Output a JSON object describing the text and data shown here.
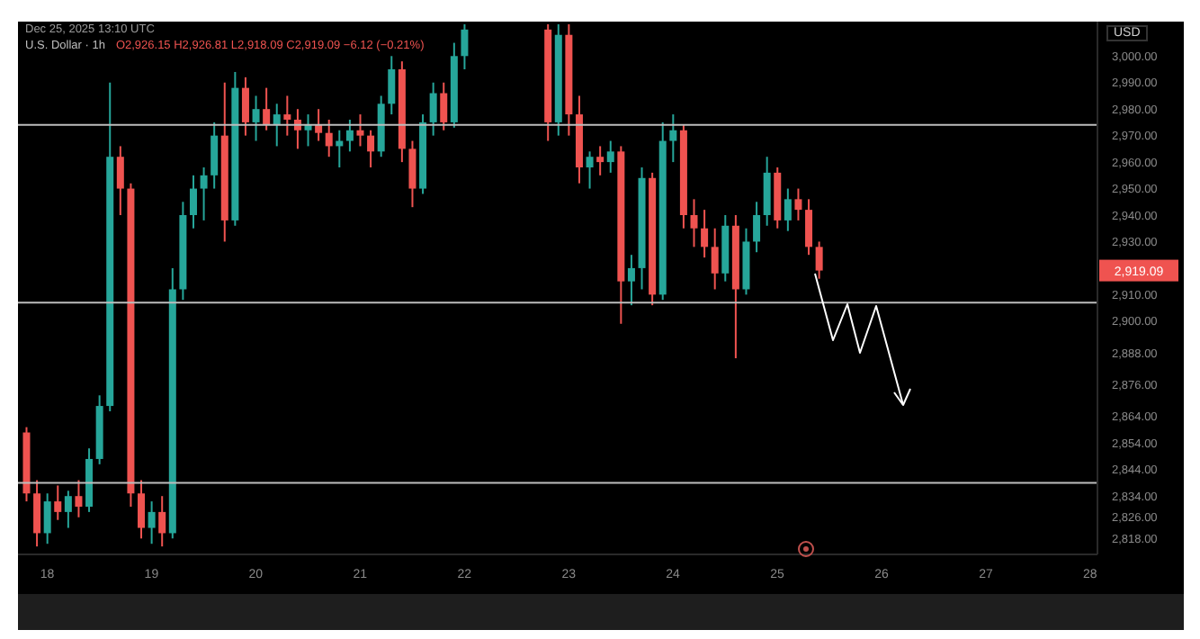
{
  "chart_data": {
    "type": "candlestick",
    "title": "U.S. Dollar · 1h",
    "ylabel": "USD",
    "annotations": [
      "Dec 25, 2025 13:10 UTC",
      "O2,926.15 H2,926.81 L2,918.09 C2,919.09 −6.12 (−0.21%)",
      "2,919.09"
    ],
    "x": [
      17.8,
      17.9,
      18.0,
      18.1,
      18.2,
      18.3,
      18.4,
      18.5,
      18.6,
      18.7,
      18.8,
      18.9,
      19.0,
      19.1,
      19.2,
      19.3,
      19.4,
      19.5,
      19.6,
      19.7,
      19.8,
      19.9,
      20.0,
      20.1,
      20.2,
      20.3,
      20.4,
      20.5,
      20.6,
      20.7,
      20.8,
      20.9,
      21.0,
      21.1,
      21.2,
      21.3,
      21.4,
      21.5,
      21.6,
      21.7,
      21.8,
      21.9,
      22.0,
      22.8,
      22.9,
      23.0,
      23.1,
      23.2,
      23.3,
      23.4,
      23.5,
      23.6,
      23.7,
      23.8,
      23.9,
      24.0,
      24.1,
      24.2,
      24.3,
      24.4,
      24.5,
      24.6,
      24.7,
      24.8,
      24.9,
      25.0,
      25.1,
      25.2,
      25.3,
      25.4
    ],
    "ohlc": [
      [
        2858,
        2860,
        2832,
        2835
      ],
      [
        2835,
        2840,
        2815,
        2820
      ],
      [
        2820,
        2835,
        2816,
        2832
      ],
      [
        2832,
        2838,
        2825,
        2828
      ],
      [
        2828,
        2836,
        2822,
        2834
      ],
      [
        2834,
        2840,
        2826,
        2830
      ],
      [
        2830,
        2852,
        2828,
        2848
      ],
      [
        2848,
        2872,
        2846,
        2868
      ],
      [
        2868,
        2990,
        2866,
        2962
      ],
      [
        2962,
        2966,
        2940,
        2950
      ],
      [
        2950,
        2952,
        2830,
        2835
      ],
      [
        2835,
        2840,
        2818,
        2822
      ],
      [
        2822,
        2832,
        2816,
        2828
      ],
      [
        2828,
        2834,
        2815,
        2820
      ],
      [
        2820,
        2920,
        2818,
        2912
      ],
      [
        2912,
        2945,
        2908,
        2940
      ],
      [
        2940,
        2955,
        2935,
        2950
      ],
      [
        2950,
        2958,
        2938,
        2955
      ],
      [
        2955,
        2975,
        2950,
        2970
      ],
      [
        2970,
        2990,
        2930,
        2938
      ],
      [
        2938,
        2994,
        2936,
        2988
      ],
      [
        2988,
        2992,
        2970,
        2975
      ],
      [
        2975,
        2985,
        2968,
        2980
      ],
      [
        2980,
        2988,
        2972,
        2974
      ],
      [
        2974,
        2982,
        2966,
        2978
      ],
      [
        2978,
        2985,
        2970,
        2976
      ],
      [
        2976,
        2980,
        2965,
        2972
      ],
      [
        2972,
        2978,
        2966,
        2974
      ],
      [
        2974,
        2980,
        2968,
        2971
      ],
      [
        2971,
        2976,
        2962,
        2966
      ],
      [
        2966,
        2972,
        2958,
        2968
      ],
      [
        2968,
        2976,
        2964,
        2972
      ],
      [
        2972,
        2978,
        2966,
        2970
      ],
      [
        2970,
        2972,
        2958,
        2964
      ],
      [
        2964,
        2985,
        2962,
        2982
      ],
      [
        2982,
        3000,
        2978,
        2995
      ],
      [
        2995,
        2998,
        2960,
        2965
      ],
      [
        2965,
        2968,
        2943,
        2950
      ],
      [
        2950,
        2978,
        2948,
        2975
      ],
      [
        2975,
        2990,
        2970,
        2986
      ],
      [
        2986,
        2990,
        2972,
        2975
      ],
      [
        2975,
        3005,
        2973,
        3000
      ],
      [
        3000,
        3012,
        2995,
        3010
      ],
      [
        3010,
        3012,
        2968,
        2975
      ],
      [
        2975,
        3012,
        2970,
        3008
      ],
      [
        3008,
        3012,
        2970,
        2978
      ],
      [
        2978,
        2985,
        2952,
        2958
      ],
      [
        2958,
        2964,
        2950,
        2962
      ],
      [
        2962,
        2966,
        2955,
        2960
      ],
      [
        2960,
        2968,
        2956,
        2964
      ],
      [
        2964,
        2966,
        2899,
        2915
      ],
      [
        2915,
        2925,
        2906,
        2920
      ],
      [
        2920,
        2958,
        2912,
        2954
      ],
      [
        2954,
        2956,
        2906,
        2910
      ],
      [
        2910,
        2975,
        2908,
        2968
      ],
      [
        2968,
        2978,
        2960,
        2972
      ],
      [
        2972,
        2974,
        2935,
        2940
      ],
      [
        2940,
        2946,
        2928,
        2935
      ],
      [
        2935,
        2942,
        2924,
        2928
      ],
      [
        2928,
        2935,
        2912,
        2918
      ],
      [
        2918,
        2940,
        2915,
        2936
      ],
      [
        2936,
        2940,
        2886,
        2912
      ],
      [
        2912,
        2935,
        2910,
        2930
      ],
      [
        2930,
        2945,
        2926,
        2940
      ],
      [
        2940,
        2962,
        2936,
        2956
      ],
      [
        2956,
        2958,
        2935,
        2938
      ],
      [
        2938,
        2950,
        2934,
        2946
      ],
      [
        2946,
        2950,
        2938,
        2942
      ],
      [
        2942,
        2946,
        2925,
        2928
      ],
      [
        2928,
        2930,
        2916,
        2919.09
      ]
    ],
    "colors": [
      "#ef5350",
      "#ef5350",
      "#26a69a",
      "#ef5350",
      "#26a69a",
      "#ef5350",
      "#26a69a",
      "#26a69a",
      "#26a69a",
      "#ef5350",
      "#ef5350",
      "#ef5350",
      "#26a69a",
      "#ef5350",
      "#26a69a",
      "#26a69a",
      "#26a69a",
      "#26a69a",
      "#26a69a",
      "#ef5350",
      "#26a69a",
      "#ef5350",
      "#26a69a",
      "#ef5350",
      "#26a69a",
      "#ef5350",
      "#ef5350",
      "#26a69a",
      "#ef5350",
      "#ef5350",
      "#26a69a",
      "#26a69a",
      "#ef5350",
      "#ef5350",
      "#26a69a",
      "#26a69a",
      "#ef5350",
      "#ef5350",
      "#26a69a",
      "#26a69a",
      "#ef5350",
      "#26a69a",
      "#26a69a",
      "#ef5350",
      "#26a69a",
      "#ef5350",
      "#ef5350",
      "#26a69a",
      "#ef5350",
      "#26a69a",
      "#ef5350",
      "#26a69a",
      "#26a69a",
      "#ef5350",
      "#26a69a",
      "#26a69a",
      "#ef5350",
      "#ef5350",
      "#ef5350",
      "#ef5350",
      "#26a69a",
      "#ef5350",
      "#26a69a",
      "#26a69a",
      "#26a69a",
      "#ef5350",
      "#26a69a",
      "#ef5350",
      "#ef5350",
      "#ef5350"
    ],
    "xlim": [
      17.72,
      28.07
    ],
    "xticks": [
      18,
      19,
      20,
      21,
      22,
      23,
      24,
      25,
      26,
      27,
      28
    ],
    "ylim": [
      2812,
      3013
    ],
    "yticks": [
      {
        "value": 3000,
        "label": "3,000.00"
      },
      {
        "value": 2990,
        "label": "2,990.00"
      },
      {
        "value": 2980,
        "label": "2,980.00"
      },
      {
        "value": 2970,
        "label": "2,970.00"
      },
      {
        "value": 2960,
        "label": "2,960.00"
      },
      {
        "value": 2950,
        "label": "2,950.00"
      },
      {
        "value": 2940,
        "label": "2,940.00"
      },
      {
        "value": 2930,
        "label": "2,930.00"
      },
      {
        "value": 2910,
        "label": "2,910.00"
      },
      {
        "value": 2900,
        "label": "2,900.00"
      },
      {
        "value": 2888,
        "label": "2,888.00"
      },
      {
        "value": 2876,
        "label": "2,876.00"
      },
      {
        "value": 2864,
        "label": "2,864.00"
      },
      {
        "value": 2854,
        "label": "2,854.00"
      },
      {
        "value": 2844,
        "label": "2,844.00"
      },
      {
        "value": 2834,
        "label": "2,834.00"
      },
      {
        "value": 2826,
        "label": "2,826.00"
      },
      {
        "value": 2818,
        "label": "2,818.00"
      }
    ],
    "ref_lines": [
      {
        "axis": "y",
        "value": 2974,
        "color": "#bdbdbd"
      },
      {
        "axis": "y",
        "value": 2907,
        "color": "#bdbdbd"
      },
      {
        "axis": "y",
        "value": 2839,
        "color": "#bdbdbd"
      }
    ]
  }
}
